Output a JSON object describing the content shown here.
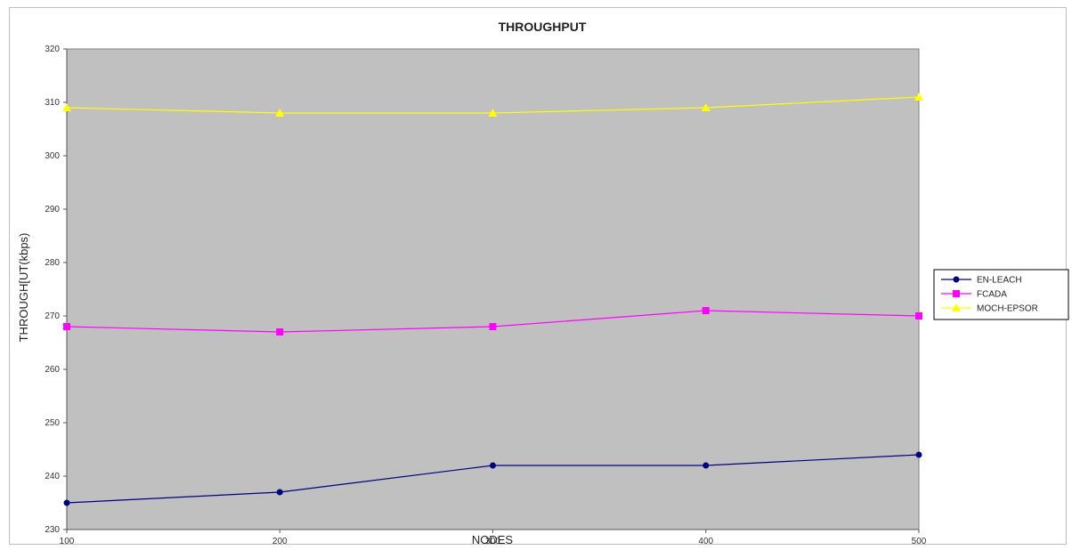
{
  "chart_data": {
    "type": "line",
    "title": "THROUGHPUT",
    "xlabel": "NODES",
    "ylabel": "THROUGH[UT(kbps)",
    "x": [
      100,
      200,
      300,
      400,
      500
    ],
    "x_tick_labels": [
      "100",
      "200",
      "300",
      "400",
      "500"
    ],
    "y_tick_labels": [
      "230",
      "240",
      "250",
      "260",
      "270",
      "280",
      "290",
      "300",
      "310",
      "320"
    ],
    "xlim": [
      100,
      500
    ],
    "ylim": [
      230,
      320
    ],
    "grid": false,
    "legend_position": "right",
    "plot_background": "#c0c0c0",
    "series": [
      {
        "name": "EN-LEACH",
        "color": "#000080",
        "marker": "circle",
        "values": [
          235,
          237,
          242,
          242,
          244
        ]
      },
      {
        "name": "FCADA",
        "color": "#ff00ff",
        "marker": "square",
        "values": [
          268,
          267,
          268,
          271,
          270
        ]
      },
      {
        "name": "MOCH-EPSOR",
        "color": "#ffff00",
        "marker": "triangle",
        "values": [
          309,
          308,
          308,
          309,
          311
        ]
      }
    ]
  }
}
